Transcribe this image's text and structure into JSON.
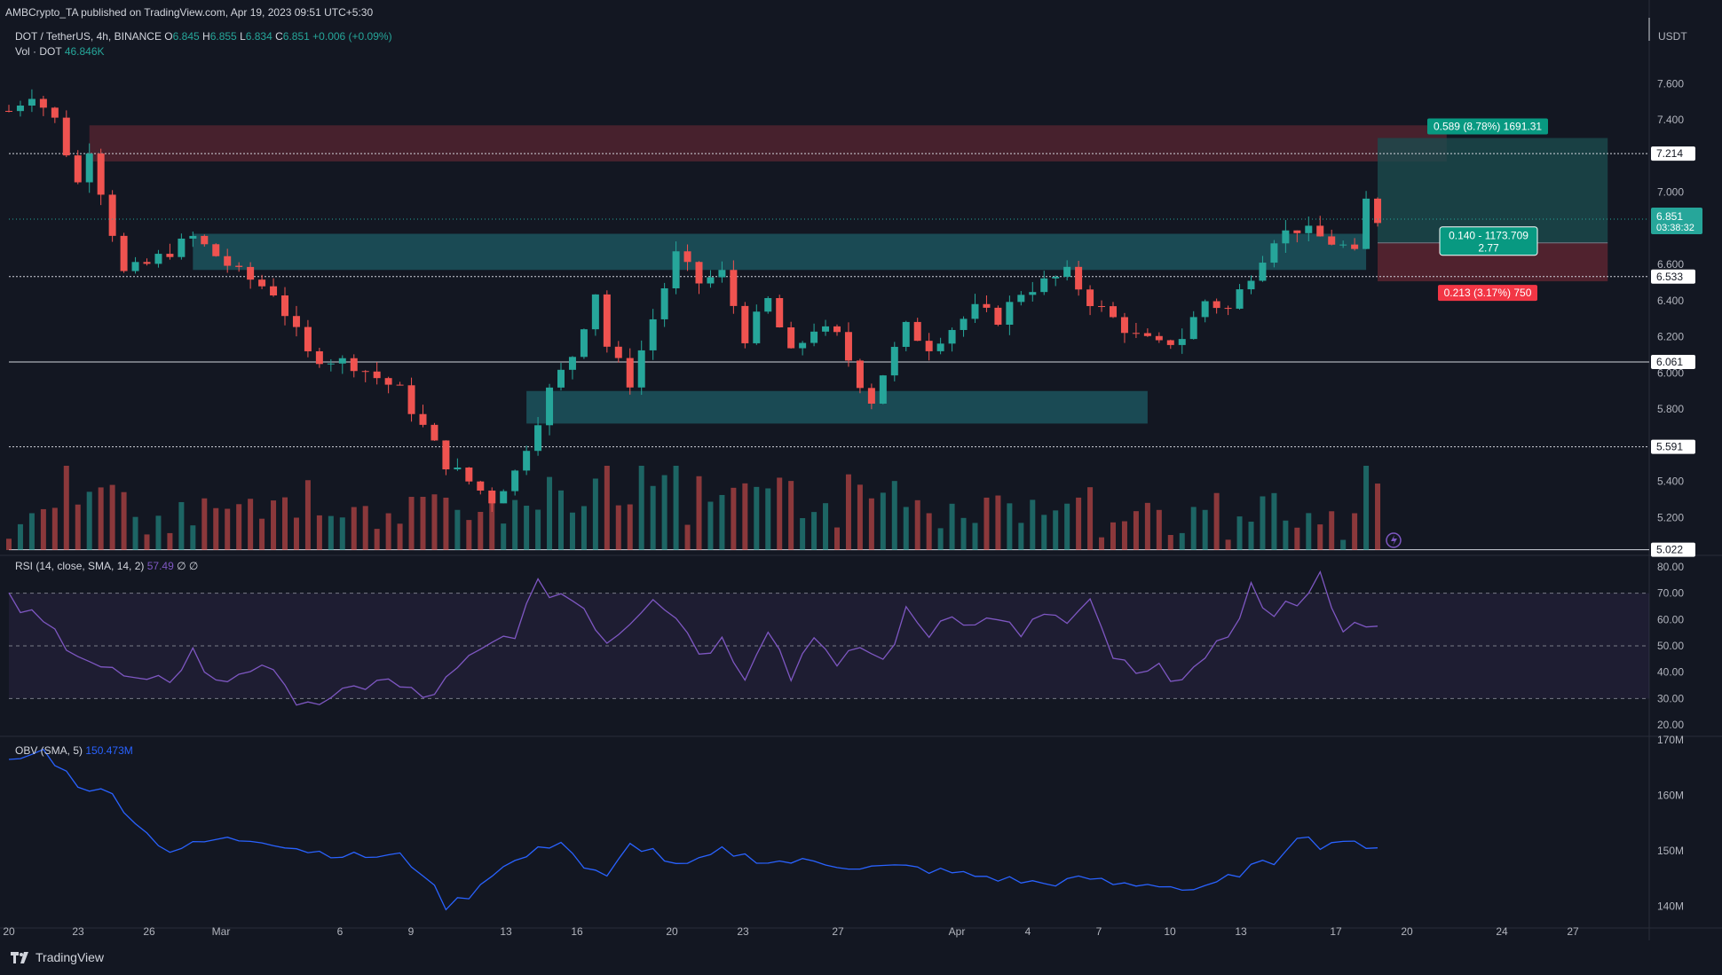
{
  "header": {
    "published": "AMBCrypto_TA published on TradingView.com, Apr 19, 2023 09:51 UTC+5:30"
  },
  "legend": {
    "symbol": "DOT / TetherUS, 4h, BINANCE",
    "o_label": "O",
    "o": "6.845",
    "h_label": "H",
    "h": "6.855",
    "l_label": "L",
    "l": "6.834",
    "c_label": "C",
    "c": "6.851",
    "change": "+0.006 (+0.09%)",
    "vol_label": "Vol · DOT",
    "vol": "46.846K",
    "rsi_label": "RSI (14, close, SMA, 14, 2)",
    "rsi_value": "57.49",
    "rsi_extra": "∅ ∅",
    "obv_label": "OBV (SMA, 5)",
    "obv_value": "150.473M"
  },
  "footer": {
    "brand": "TradingView"
  },
  "colors": {
    "background": "#131722",
    "up": "#26a69a",
    "down": "#ef5350",
    "rsi": "#7e57c2",
    "obv": "#2962ff",
    "zone_teal": "#1d5c66",
    "zone_red": "#5a2632"
  },
  "chart_data": [
    {
      "type": "candlestick",
      "symbol": "DOT / TetherUS",
      "timeframe": "4h",
      "exchange": "BINANCE",
      "axis_unit": "USDT",
      "y_ticks": [
        "7.600",
        "7.400",
        "7.200",
        "7.000",
        "6.800",
        "6.600",
        "6.400",
        "6.200",
        "6.000",
        "5.800",
        "5.600",
        "5.400",
        "5.200"
      ],
      "ylim": [
        5.02,
        7.72
      ],
      "x_ticks": [
        "20",
        "23",
        "26",
        "Mar",
        "6",
        "9",
        "13",
        "16",
        "20",
        "23",
        "27",
        "Apr",
        "4",
        "7",
        "10",
        "13",
        "17",
        "20",
        "24",
        "27"
      ],
      "path": [
        [
          0,
          7.45
        ],
        [
          2,
          7.55
        ],
        [
          4,
          7.4
        ],
        [
          6,
          7.05
        ],
        [
          7,
          7.25
        ],
        [
          10,
          6.55
        ],
        [
          12,
          6.6
        ],
        [
          16,
          6.75
        ],
        [
          20,
          6.55
        ],
        [
          23,
          6.45
        ],
        [
          26,
          6.1
        ],
        [
          30,
          6.05
        ],
        [
          34,
          5.9
        ],
        [
          38,
          5.5
        ],
        [
          42,
          5.3
        ],
        [
          44,
          5.45
        ],
        [
          47,
          5.9
        ],
        [
          49,
          6.1
        ],
        [
          51,
          6.45
        ],
        [
          52,
          6.15
        ],
        [
          54,
          5.95
        ],
        [
          56,
          6.3
        ],
        [
          58,
          6.65
        ],
        [
          60,
          6.5
        ],
        [
          62,
          6.55
        ],
        [
          64,
          6.2
        ],
        [
          66,
          6.4
        ],
        [
          68,
          6.1
        ],
        [
          70,
          6.25
        ],
        [
          72,
          6.2
        ],
        [
          74,
          5.95
        ],
        [
          75,
          5.85
        ],
        [
          76,
          6.0
        ],
        [
          78,
          6.25
        ],
        [
          80,
          6.15
        ],
        [
          82,
          6.25
        ],
        [
          84,
          6.35
        ],
        [
          86,
          6.3
        ],
        [
          88,
          6.45
        ],
        [
          90,
          6.5
        ],
        [
          92,
          6.55
        ],
        [
          94,
          6.4
        ],
        [
          96,
          6.3
        ],
        [
          98,
          6.2
        ],
        [
          100,
          6.15
        ],
        [
          102,
          6.2
        ],
        [
          104,
          6.4
        ],
        [
          106,
          6.35
        ],
        [
          108,
          6.55
        ],
        [
          110,
          6.75
        ],
        [
          112,
          6.8
        ],
        [
          114,
          6.75
        ],
        [
          116,
          6.7
        ],
        [
          117,
          6.65
        ],
        [
          118,
          6.95
        ],
        [
          119,
          6.85
        ]
      ],
      "last_price": "6.851",
      "countdown": "03:38:32",
      "price_lines": [
        {
          "value": 7.214,
          "label": "7.214",
          "style": "dotted"
        },
        {
          "value": 6.533,
          "label": "6.533",
          "style": "dotted"
        },
        {
          "value": 6.061,
          "label": "6.061",
          "style": "solid"
        },
        {
          "value": 5.591,
          "label": "5.591",
          "style": "dotted"
        },
        {
          "value": 5.022,
          "label": "5.022",
          "style": "solid"
        }
      ],
      "zones": [
        {
          "kind": "supply",
          "color": "red",
          "from_bar": 7,
          "to_bar": 125,
          "y_low": 7.17,
          "y_high": 7.37
        },
        {
          "kind": "demand",
          "color": "teal",
          "from_bar": 16,
          "to_bar": 118,
          "y_low": 6.57,
          "y_high": 6.77
        },
        {
          "kind": "demand",
          "color": "teal",
          "from_bar": 45,
          "to_bar": 99,
          "y_low": 5.72,
          "y_high": 5.9
        }
      ],
      "position": {
        "entry": 6.72,
        "target": 7.3,
        "stop": 6.507,
        "from_bar": 119,
        "to_bar": 139,
        "target_label": "0.589 (8.78%) 1691.31",
        "center_label_1": "0.140 - 1173.709",
        "center_label_2": "2.77",
        "stop_label": "0.213 (3.17%) 750"
      }
    },
    {
      "type": "bar",
      "title": "Vol · DOT",
      "last_value": "46.846K"
    },
    {
      "type": "line",
      "title": "RSI (14, close, SMA, 14, 2)",
      "last_value": 57.49,
      "ylim": [
        17,
        83
      ],
      "y_ticks": [
        "80.00",
        "70.00",
        "60.00",
        "50.00",
        "40.00",
        "30.00",
        "20.00"
      ],
      "bands": {
        "upper": 70,
        "middle": 50,
        "lower": 30
      },
      "path": [
        [
          0,
          67
        ],
        [
          4,
          55
        ],
        [
          8,
          42
        ],
        [
          12,
          34
        ],
        [
          14,
          38
        ],
        [
          16,
          48
        ],
        [
          18,
          35
        ],
        [
          20,
          40
        ],
        [
          22,
          44
        ],
        [
          24,
          32
        ],
        [
          28,
          28
        ],
        [
          32,
          38
        ],
        [
          36,
          30
        ],
        [
          38,
          36
        ],
        [
          40,
          44
        ],
        [
          42,
          50
        ],
        [
          44,
          56
        ],
        [
          46,
          72
        ],
        [
          48,
          70
        ],
        [
          50,
          65
        ],
        [
          52,
          52
        ],
        [
          54,
          60
        ],
        [
          56,
          70
        ],
        [
          58,
          62
        ],
        [
          60,
          48
        ],
        [
          62,
          52
        ],
        [
          64,
          40
        ],
        [
          66,
          58
        ],
        [
          68,
          38
        ],
        [
          70,
          56
        ],
        [
          72,
          40
        ],
        [
          74,
          50
        ],
        [
          76,
          44
        ],
        [
          78,
          62
        ],
        [
          80,
          55
        ],
        [
          82,
          64
        ],
        [
          84,
          57
        ],
        [
          86,
          62
        ],
        [
          88,
          52
        ],
        [
          90,
          63
        ],
        [
          92,
          58
        ],
        [
          94,
          65
        ],
        [
          96,
          46
        ],
        [
          98,
          38
        ],
        [
          100,
          40
        ],
        [
          102,
          40
        ],
        [
          104,
          42
        ],
        [
          106,
          55
        ],
        [
          108,
          72
        ],
        [
          110,
          60
        ],
        [
          112,
          68
        ],
        [
          114,
          76
        ],
        [
          116,
          58
        ],
        [
          118,
          55
        ],
        [
          119,
          57.49
        ]
      ]
    },
    {
      "type": "line",
      "title": "OBV (SMA, 5)",
      "last_value": 150.473,
      "unit": "M",
      "ylim": [
        137,
        170
      ],
      "y_ticks": [
        "170M",
        "160M",
        "150M",
        "140M"
      ],
      "path": [
        [
          0,
          166
        ],
        [
          3,
          168
        ],
        [
          6,
          162
        ],
        [
          9,
          160
        ],
        [
          12,
          153
        ],
        [
          14,
          150
        ],
        [
          18,
          152
        ],
        [
          22,
          152
        ],
        [
          26,
          150
        ],
        [
          30,
          149
        ],
        [
          34,
          149
        ],
        [
          36,
          146
        ],
        [
          38,
          140
        ],
        [
          40,
          142
        ],
        [
          42,
          146
        ],
        [
          46,
          150
        ],
        [
          48,
          152
        ],
        [
          50,
          147
        ],
        [
          52,
          145
        ],
        [
          54,
          151
        ],
        [
          56,
          150
        ],
        [
          58,
          147
        ],
        [
          60,
          148
        ],
        [
          62,
          150
        ],
        [
          64,
          149
        ],
        [
          66,
          148
        ],
        [
          70,
          148
        ],
        [
          74,
          147
        ],
        [
          78,
          147
        ],
        [
          82,
          146
        ],
        [
          86,
          145
        ],
        [
          90,
          144
        ],
        [
          94,
          145
        ],
        [
          96,
          144
        ],
        [
          100,
          144
        ],
        [
          102,
          143
        ],
        [
          104,
          143
        ],
        [
          106,
          145
        ],
        [
          108,
          147
        ],
        [
          110,
          148
        ],
        [
          112,
          153
        ],
        [
          114,
          151
        ],
        [
          116,
          152
        ],
        [
          118,
          150
        ],
        [
          119,
          150.5
        ]
      ]
    }
  ],
  "bars_total": 140
}
